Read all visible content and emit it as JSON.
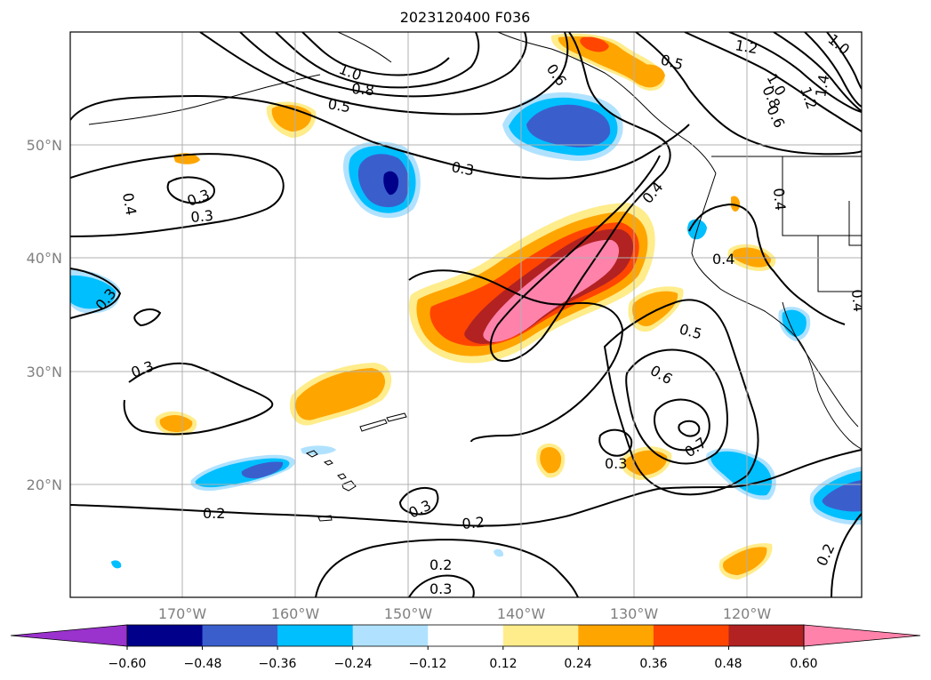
{
  "title": "2023120400 F036",
  "lat_labels": [
    "50°N",
    "40°N",
    "30°N",
    "20°N"
  ],
  "lon_labels": [
    "170°W",
    "160°W",
    "150°W",
    "140°W",
    "130°W",
    "120°W"
  ],
  "colorbar": {
    "ticks": [
      "−0.60",
      "−0.48",
      "−0.36",
      "−0.24",
      "−0.12",
      "0.12",
      "0.24",
      "0.36",
      "0.48",
      "0.60"
    ],
    "colors": [
      "#9a32cd",
      "#00008b",
      "#3a5fcd",
      "#00bfff",
      "#b0e2ff",
      "#ffffff",
      "#ffec8b",
      "#ffa500",
      "#ff4500",
      "#b22222",
      "#ff82ab"
    ]
  },
  "contour_labels": [
    "0.2",
    "0.3",
    "0.4",
    "0.5",
    "0.6",
    "0.7",
    "0.8",
    "1.0",
    "1.2",
    "1.4"
  ],
  "shading_colors": {
    "light_yellow": "#ffec8b",
    "orange": "#ffa500",
    "red_orange": "#ff4500",
    "dark_red": "#b22222",
    "pink": "#ff82ab",
    "light_blue": "#b0e2ff",
    "cyan": "#00bfff",
    "blue": "#3a5fcd",
    "navy": "#00008b"
  }
}
